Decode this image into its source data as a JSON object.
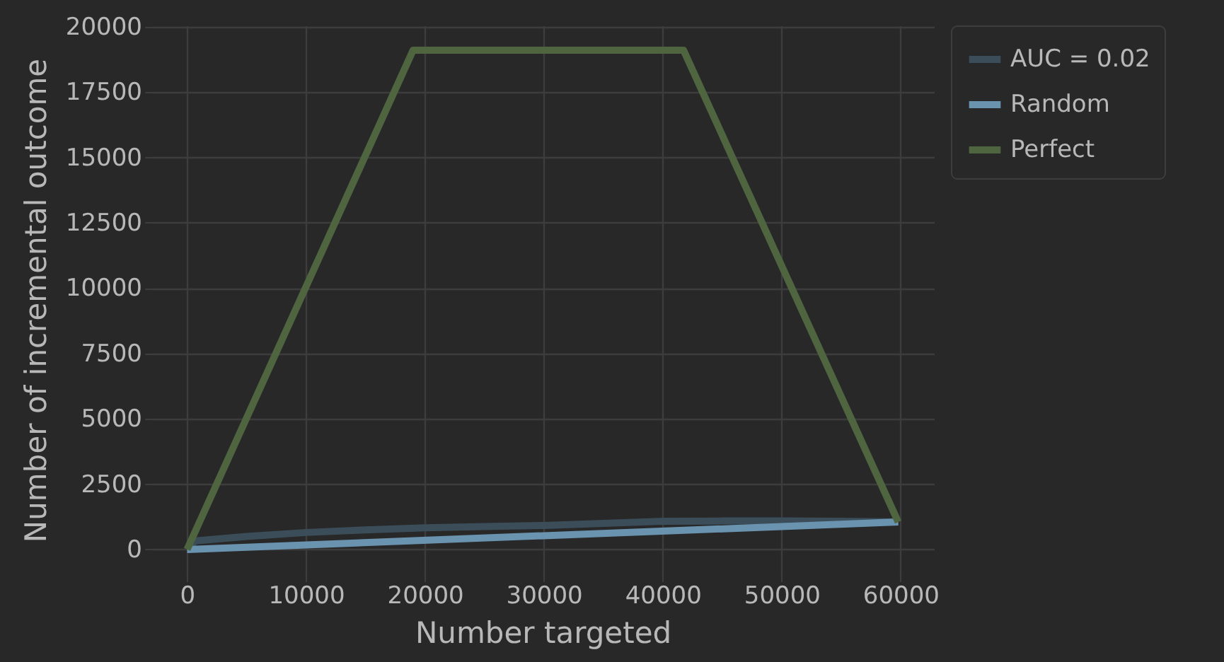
{
  "chart_data": {
    "type": "line",
    "xlabel": "Number targeted",
    "ylabel": "Number of incremental outcome",
    "xlim": [
      -3000,
      62800
    ],
    "ylim": [
      -950,
      20050
    ],
    "xticks": [
      0,
      10000,
      20000,
      30000,
      40000,
      50000,
      60000
    ],
    "yticks": [
      0,
      2500,
      5000,
      7500,
      10000,
      12500,
      15000,
      17500,
      20000
    ],
    "grid": true,
    "legend": "top right",
    "marker": "none",
    "line_style": "solid",
    "series": [
      {
        "name": "AUC = 0.02",
        "color": "#3b4d59",
        "x": [
          0,
          700,
          5000,
          10000,
          15000,
          20000,
          25000,
          30000,
          35000,
          40000,
          45000,
          50000,
          55000,
          59800
        ],
        "values": [
          0,
          330,
          500,
          650,
          750,
          830,
          880,
          920,
          1000,
          1080,
          1090,
          1090,
          1080,
          1050
        ]
      },
      {
        "name": "Random",
        "color": "#6a93b0",
        "x": [
          0,
          59800
        ],
        "values": [
          0,
          1050
        ]
      },
      {
        "name": "Perfect",
        "color": "#4e6540",
        "x": [
          0,
          19000,
          41750,
          59800
        ],
        "values": [
          0,
          19100,
          19100,
          1050
        ]
      }
    ]
  }
}
